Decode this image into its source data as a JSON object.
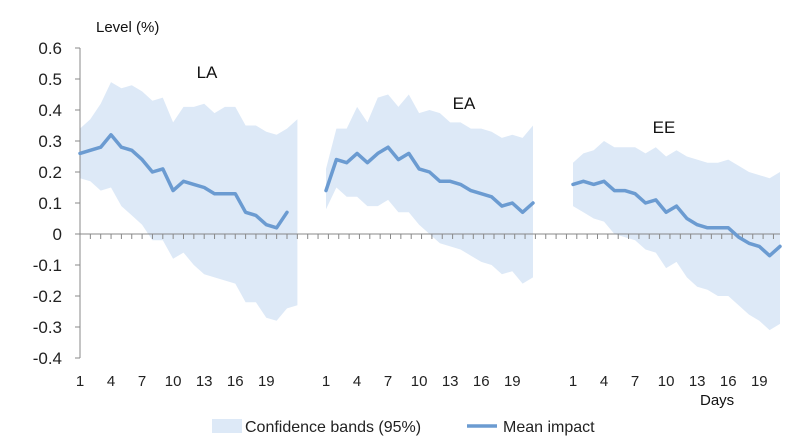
{
  "chart_data": {
    "type": "line",
    "ylabel": "Level (%)",
    "xlabel": "Days",
    "ylim": [
      -0.4,
      0.6
    ],
    "yticks": [
      "0.6",
      "0.5",
      "0.4",
      "0.3",
      "0.2",
      "0.1",
      "0",
      "-0.1",
      "-0.2",
      "-0.3",
      "-0.4"
    ],
    "xtick_labels": [
      "1",
      "4",
      "7",
      "10",
      "13",
      "16",
      "19"
    ],
    "legend": {
      "band": "Confidence bands (95%)",
      "line": "Mean impact",
      "position": "bottom"
    },
    "colors": {
      "band": "#dde9f7",
      "line": "#6b9bd1",
      "axis": "#888888"
    },
    "panels": [
      {
        "name": "LA",
        "days": [
          1,
          2,
          3,
          4,
          5,
          6,
          7,
          8,
          9,
          10,
          11,
          12,
          13,
          14,
          15,
          16,
          17,
          18,
          19,
          20,
          21,
          22
        ],
        "mean": [
          0.26,
          0.27,
          0.28,
          0.32,
          0.28,
          0.27,
          0.24,
          0.2,
          0.21,
          0.14,
          0.17,
          0.16,
          0.15,
          0.13,
          0.13,
          0.13,
          0.07,
          0.06,
          0.03,
          0.02,
          0.07,
          null
        ],
        "upper": [
          0.34,
          0.37,
          0.42,
          0.49,
          0.47,
          0.48,
          0.46,
          0.43,
          0.44,
          0.36,
          0.41,
          0.41,
          0.42,
          0.39,
          0.41,
          0.41,
          0.35,
          0.35,
          0.33,
          0.32,
          0.34,
          0.37
        ],
        "lower": [
          0.18,
          0.17,
          0.14,
          0.15,
          0.09,
          0.06,
          0.03,
          -0.02,
          -0.02,
          -0.08,
          -0.06,
          -0.1,
          -0.13,
          -0.14,
          -0.15,
          -0.16,
          -0.22,
          -0.22,
          -0.27,
          -0.28,
          -0.24,
          -0.23
        ]
      },
      {
        "name": "EA",
        "days": [
          1,
          2,
          3,
          4,
          5,
          6,
          7,
          8,
          9,
          10,
          11,
          12,
          13,
          14,
          15,
          16,
          17,
          18,
          19,
          20,
          21
        ],
        "mean": [
          0.14,
          0.24,
          0.23,
          0.26,
          0.23,
          0.26,
          0.28,
          0.24,
          0.26,
          0.21,
          0.2,
          0.17,
          0.17,
          0.16,
          0.14,
          0.13,
          0.12,
          0.09,
          0.1,
          0.07,
          0.1
        ],
        "upper": [
          0.21,
          0.34,
          0.34,
          0.41,
          0.36,
          0.44,
          0.45,
          0.41,
          0.45,
          0.39,
          0.4,
          0.39,
          0.36,
          0.36,
          0.34,
          0.34,
          0.33,
          0.31,
          0.32,
          0.31,
          0.35
        ],
        "lower": [
          0.08,
          0.15,
          0.12,
          0.12,
          0.09,
          0.09,
          0.11,
          0.07,
          0.07,
          0.03,
          0.0,
          -0.03,
          -0.04,
          -0.05,
          -0.07,
          -0.09,
          -0.1,
          -0.13,
          -0.12,
          -0.16,
          -0.14
        ]
      },
      {
        "name": "EE",
        "days": [
          1,
          2,
          3,
          4,
          5,
          6,
          7,
          8,
          9,
          10,
          11,
          12,
          13,
          14,
          15,
          16,
          17,
          18,
          19,
          20,
          21,
          22,
          23
        ],
        "mean": [
          0.16,
          0.17,
          0.16,
          0.17,
          0.14,
          0.14,
          0.13,
          0.1,
          0.11,
          0.07,
          0.09,
          0.05,
          0.03,
          0.02,
          0.02,
          0.02,
          -0.01,
          -0.03,
          -0.04,
          -0.07,
          -0.04,
          null,
          null
        ],
        "upper": [
          0.23,
          0.26,
          0.27,
          0.3,
          0.28,
          0.28,
          0.28,
          0.26,
          0.28,
          0.25,
          0.27,
          0.25,
          0.24,
          0.23,
          0.23,
          0.24,
          0.22,
          0.2,
          0.19,
          0.18,
          0.2,
          null,
          null
        ],
        "lower": [
          0.09,
          0.07,
          0.05,
          0.04,
          0.0,
          -0.01,
          -0.02,
          -0.05,
          -0.06,
          -0.11,
          -0.09,
          -0.14,
          -0.17,
          -0.18,
          -0.2,
          -0.2,
          -0.23,
          -0.26,
          -0.28,
          -0.31,
          -0.29,
          null,
          null
        ]
      }
    ]
  }
}
